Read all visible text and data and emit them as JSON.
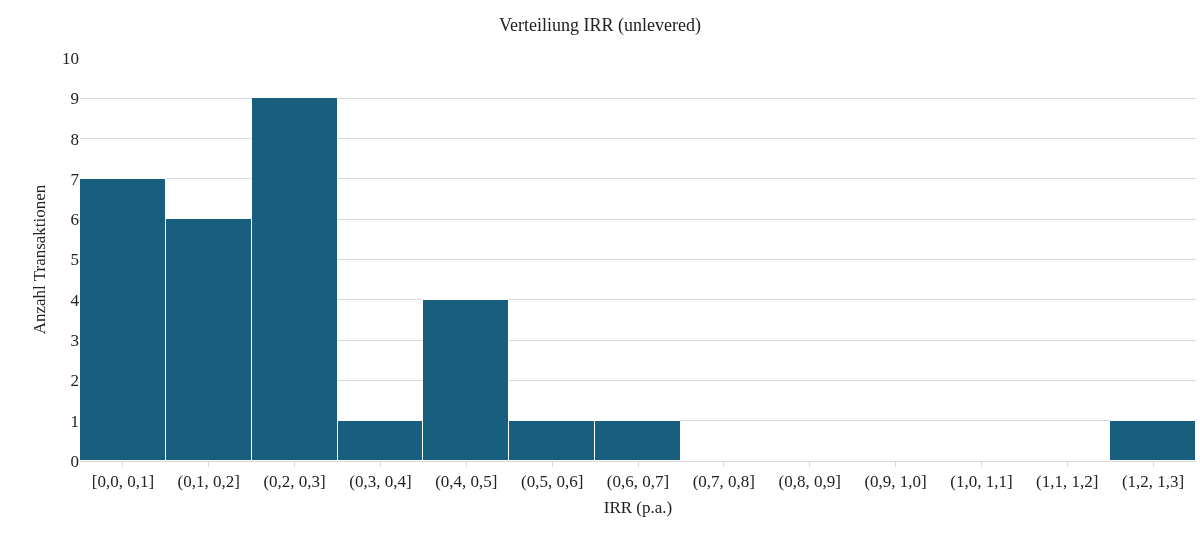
{
  "chart_data": {
    "type": "bar",
    "title": "Verteiliung IRR (unlevered)",
    "xlabel": "IRR (p.a.)",
    "ylabel": "Anzahl Transaktionen",
    "categories": [
      "[0,0, 0,1]",
      "(0,1, 0,2]",
      "(0,2, 0,3]",
      "(0,3, 0,4]",
      "(0,4, 0,5]",
      "(0,5, 0,6]",
      "(0,6, 0,7]",
      "(0,7, 0,8]",
      "(0,8, 0,9]",
      "(0,9, 1,0]",
      "(1,0, 1,1]",
      "(1,1, 1,2]",
      "(1,2, 1,3]"
    ],
    "values": [
      7,
      6,
      9,
      1,
      4,
      1,
      1,
      0,
      0,
      0,
      0,
      0,
      1
    ],
    "color": "#175e7f",
    "ylim": [
      0,
      10
    ],
    "yticks": [
      0,
      1,
      2,
      3,
      4,
      5,
      6,
      7,
      8,
      9,
      10
    ],
    "grid": "y"
  }
}
